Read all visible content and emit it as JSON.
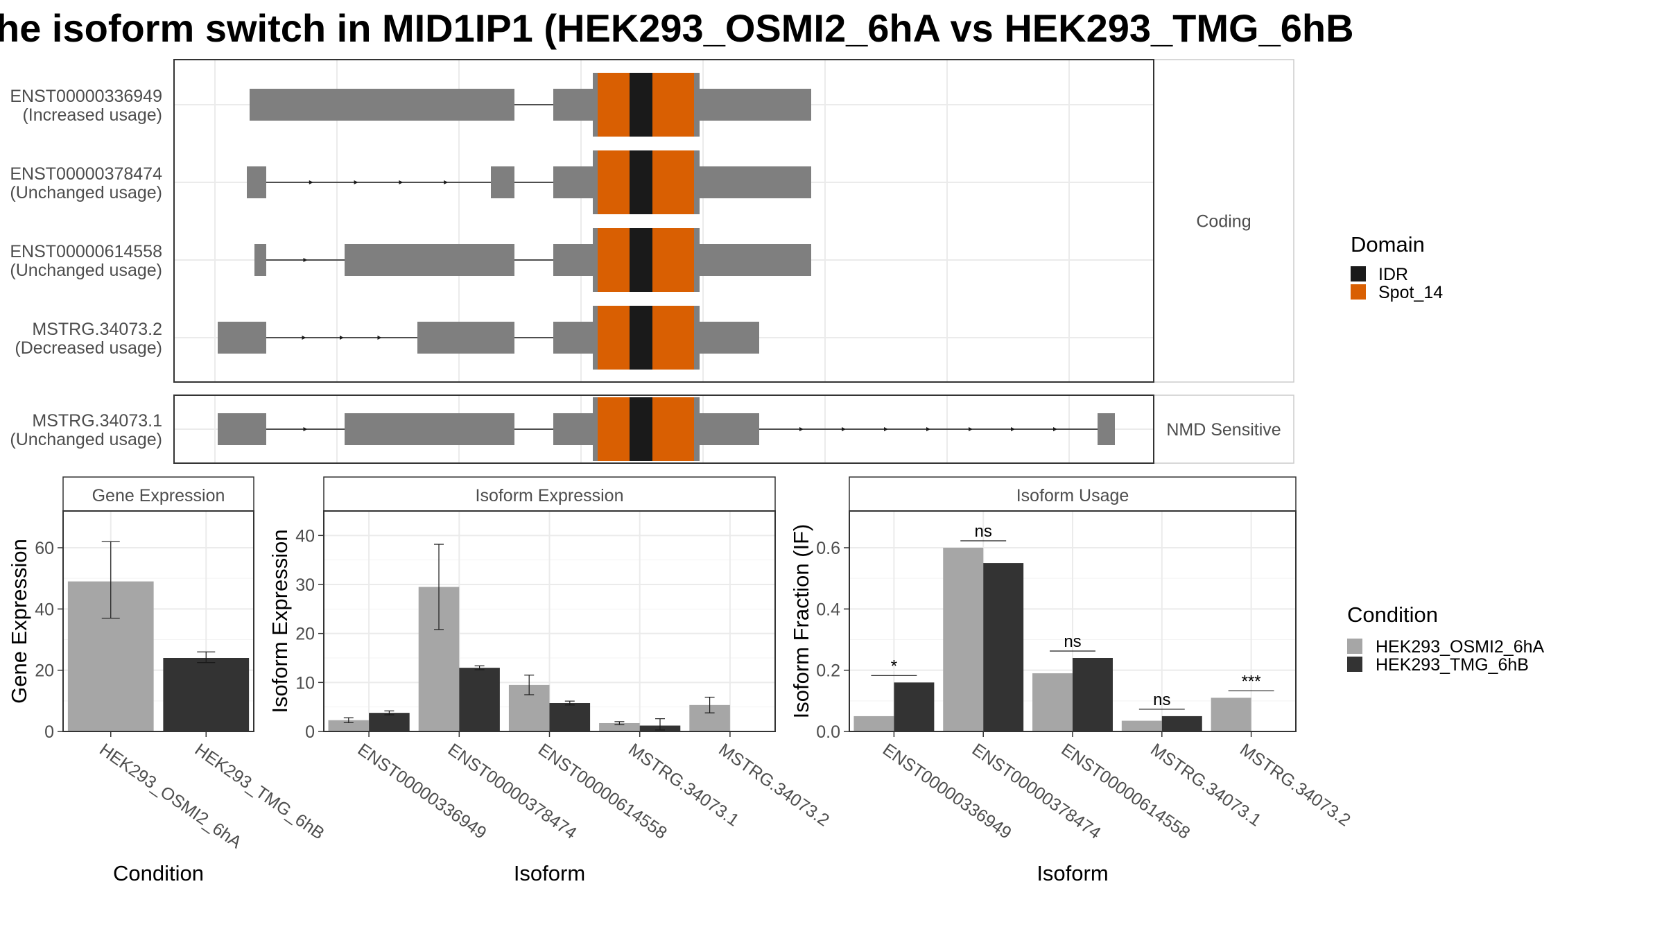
{
  "title": "he isoform switch in MID1IP1 (HEK293_OSMI2_6hA vs HEK293_TMG_6hB",
  "colors": {
    "exon": "#7f7f7f",
    "idr": "#1a1a1a",
    "spot14": "#d95f02",
    "cond_a": "#a6a6a6",
    "cond_b": "#333333",
    "grid": "#ebebeb",
    "strip_bg": "#ffffff",
    "panel_border": "#333333"
  },
  "structure": {
    "facets": [
      "Coding",
      "NMD Sensitive"
    ],
    "legend_title": "Domain",
    "legend_items": [
      {
        "label": "IDR",
        "color": "#1a1a1a"
      },
      {
        "label": "Spot_14",
        "color": "#d95f02"
      }
    ],
    "transcripts": [
      {
        "id": "ENST00000336949",
        "usage": "(Increased usage)",
        "facet": "Coding"
      },
      {
        "id": "ENST00000378474",
        "usage": "(Unchanged usage)",
        "facet": "Coding"
      },
      {
        "id": "ENST00000614558",
        "usage": "(Unchanged usage)",
        "facet": "Coding"
      },
      {
        "id": "MSTRG.34073.2",
        "usage": "(Decreased usage)",
        "facet": "Coding"
      },
      {
        "id": "MSTRG.34073.1",
        "usage": "(Unchanged usage)",
        "facet": "NMD Sensitive"
      }
    ]
  },
  "condition_legend": {
    "title": "Condition",
    "items": [
      {
        "label": "HEK293_OSMI2_6hA",
        "color": "#a6a6a6"
      },
      {
        "label": "HEK293_TMG_6hB",
        "color": "#333333"
      }
    ]
  },
  "chart_data": [
    {
      "type": "bar",
      "title": "Gene Expression",
      "xlabel": "Condition",
      "ylabel": "Gene Expression",
      "categories": [
        "HEK293_OSMI2_6hA",
        "HEK293_TMG_6hB"
      ],
      "values": [
        49,
        24
      ],
      "errors": [
        [
          37,
          62
        ],
        [
          22.5,
          26
        ]
      ],
      "ylim": [
        0,
        72
      ],
      "yticks": [
        0,
        20,
        40,
        60
      ]
    },
    {
      "type": "bar",
      "title": "Isoform Expression",
      "xlabel": "Isoform",
      "ylabel": "Isoform Expression",
      "categories": [
        "ENST00000336949",
        "ENST00000378474",
        "ENST00000614558",
        "MSTRG.34073.1",
        "MSTRG.34073.2"
      ],
      "series": [
        {
          "name": "HEK293_OSMI2_6hA",
          "values": [
            2.3,
            29.5,
            9.5,
            1.7,
            5.4
          ],
          "errors": [
            [
              1.8,
              2.8
            ],
            [
              20.8,
              38.2
            ],
            [
              7.5,
              11.5
            ],
            [
              1.4,
              2.0
            ],
            [
              3.8,
              7.0
            ]
          ]
        },
        {
          "name": "HEK293_TMG_6hB",
          "values": [
            3.8,
            13.0,
            5.8,
            1.2,
            0
          ],
          "errors": [
            [
              3.4,
              4.2
            ],
            [
              12.6,
              13.4
            ],
            [
              5.4,
              6.2
            ],
            [
              0.3,
              2.6
            ],
            [
              0,
              0
            ]
          ]
        }
      ],
      "ylim": [
        0,
        45
      ],
      "yticks": [
        0,
        10,
        20,
        30,
        40
      ]
    },
    {
      "type": "bar",
      "title": "Isoform Usage",
      "xlabel": "Isoform",
      "ylabel": "Isoform Fraction (IF)",
      "categories": [
        "ENST00000336949",
        "ENST00000378474",
        "ENST00000614558",
        "MSTRG.34073.1",
        "MSTRG.34073.2"
      ],
      "series": [
        {
          "name": "HEK293_OSMI2_6hA",
          "values": [
            0.05,
            0.6,
            0.19,
            0.035,
            0.11
          ]
        },
        {
          "name": "HEK293_TMG_6hB",
          "values": [
            0.16,
            0.55,
            0.24,
            0.05,
            0
          ]
        }
      ],
      "significance": [
        "*",
        "ns",
        "ns",
        "ns",
        "***"
      ],
      "ylim": [
        0,
        0.72
      ],
      "yticks": [
        0.0,
        0.2,
        0.4,
        0.6
      ]
    }
  ]
}
